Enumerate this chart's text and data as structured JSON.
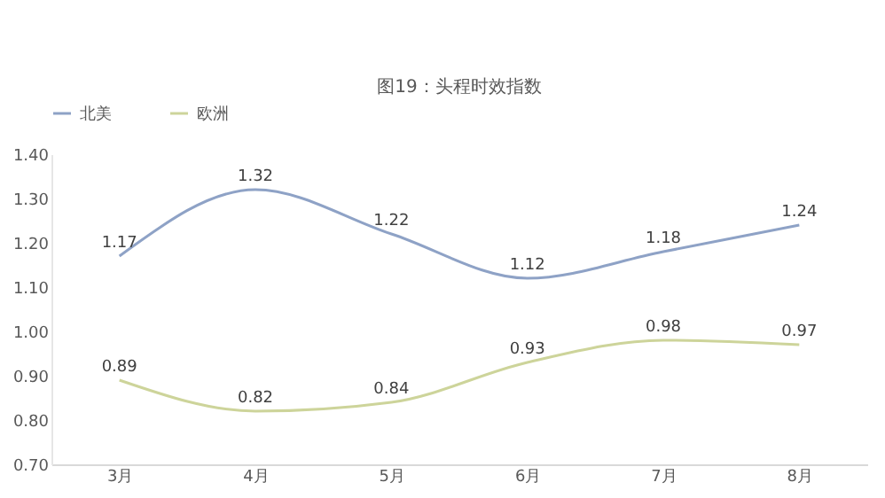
{
  "chart_data": {
    "type": "line",
    "title": "图19：头程时效指数",
    "categories": [
      "3月",
      "4月",
      "5月",
      "6月",
      "7月",
      "8月"
    ],
    "series": [
      {
        "name": "北美",
        "color": "#8ea2c6",
        "values": [
          1.17,
          1.32,
          1.22,
          1.12,
          1.18,
          1.24
        ]
      },
      {
        "name": "欧洲",
        "color": "#cdd49a",
        "values": [
          0.89,
          0.82,
          0.84,
          0.93,
          0.98,
          0.97
        ]
      }
    ],
    "ylim": [
      0.7,
      1.4
    ],
    "yticks": [
      {
        "value": 0.7,
        "label": "0.70"
      },
      {
        "value": 0.8,
        "label": "0.80"
      },
      {
        "value": 0.9,
        "label": "0.90"
      },
      {
        "value": 1.0,
        "label": "1.00"
      },
      {
        "value": 1.1,
        "label": "1.10"
      },
      {
        "value": 1.2,
        "label": "1.20"
      },
      {
        "value": 1.3,
        "label": "1.30"
      },
      {
        "value": 1.4,
        "label": "1.40"
      }
    ],
    "data_labels": true,
    "legend": "top",
    "grid": false,
    "marker": "none",
    "line_style": "solid"
  }
}
